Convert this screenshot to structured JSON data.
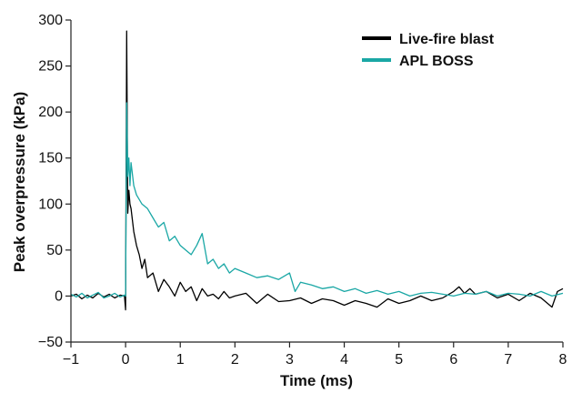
{
  "chart_data": {
    "type": "line",
    "title": "",
    "xlabel": "Time (ms)",
    "ylabel": "Peak overpressure (kPa)",
    "xlim": [
      -1,
      8
    ],
    "ylim": [
      -50,
      300
    ],
    "xticks": [
      -1,
      0,
      1,
      2,
      3,
      4,
      5,
      6,
      7,
      8
    ],
    "yticks": [
      -50,
      0,
      50,
      100,
      150,
      200,
      250,
      300
    ],
    "xtick_labels": [
      "−1",
      "0",
      "1",
      "2",
      "3",
      "4",
      "5",
      "6",
      "7",
      "8"
    ],
    "ytick_labels": [
      "−50",
      "0",
      "50",
      "100",
      "150",
      "200",
      "250",
      "300"
    ],
    "grid": false,
    "legend": "top-right",
    "series": [
      {
        "name": "Live-fire blast",
        "color": "#000000",
        "x": [
          -1.0,
          -0.9,
          -0.8,
          -0.7,
          -0.6,
          -0.5,
          -0.4,
          -0.3,
          -0.2,
          -0.1,
          -0.02,
          0.0,
          0.02,
          0.04,
          0.06,
          0.08,
          0.1,
          0.15,
          0.2,
          0.25,
          0.3,
          0.35,
          0.4,
          0.5,
          0.6,
          0.7,
          0.8,
          0.9,
          1.0,
          1.1,
          1.2,
          1.3,
          1.4,
          1.5,
          1.6,
          1.7,
          1.8,
          1.9,
          2.0,
          2.2,
          2.4,
          2.6,
          2.8,
          3.0,
          3.2,
          3.4,
          3.6,
          3.8,
          4.0,
          4.2,
          4.4,
          4.6,
          4.8,
          5.0,
          5.2,
          5.4,
          5.6,
          5.8,
          6.0,
          6.1,
          6.2,
          6.3,
          6.4,
          6.6,
          6.8,
          7.0,
          7.2,
          7.4,
          7.6,
          7.8,
          7.9,
          8.0
        ],
        "values": [
          0,
          2,
          -3,
          1,
          -2,
          3,
          -1,
          2,
          -2,
          1,
          0,
          -15,
          288,
          90,
          115,
          100,
          95,
          70,
          55,
          45,
          30,
          40,
          20,
          25,
          5,
          18,
          10,
          0,
          15,
          5,
          10,
          -5,
          8,
          0,
          2,
          -3,
          5,
          -2,
          0,
          3,
          -8,
          2,
          -6,
          -5,
          -2,
          -8,
          -3,
          -5,
          -10,
          -5,
          -8,
          -12,
          -3,
          -8,
          -5,
          0,
          -5,
          -2,
          5,
          10,
          3,
          8,
          2,
          5,
          -2,
          2,
          -5,
          3,
          -2,
          -12,
          5,
          8
        ]
      },
      {
        "name": "APL BOSS",
        "color": "#1aa7a5",
        "x": [
          -1.0,
          -0.9,
          -0.8,
          -0.7,
          -0.6,
          -0.5,
          -0.4,
          -0.3,
          -0.2,
          -0.1,
          -0.02,
          0.0,
          0.02,
          0.04,
          0.06,
          0.08,
          0.1,
          0.15,
          0.2,
          0.3,
          0.4,
          0.5,
          0.6,
          0.7,
          0.8,
          0.9,
          1.0,
          1.1,
          1.2,
          1.3,
          1.4,
          1.5,
          1.6,
          1.7,
          1.8,
          1.9,
          2.0,
          2.2,
          2.4,
          2.6,
          2.8,
          3.0,
          3.1,
          3.2,
          3.4,
          3.6,
          3.8,
          4.0,
          4.2,
          4.4,
          4.6,
          4.8,
          5.0,
          5.2,
          5.4,
          5.6,
          5.8,
          6.0,
          6.2,
          6.4,
          6.6,
          6.8,
          7.0,
          7.2,
          7.4,
          7.6,
          7.8,
          8.0
        ],
        "values": [
          2,
          -1,
          3,
          -2,
          1,
          4,
          -2,
          0,
          3,
          -1,
          1,
          0,
          210,
          130,
          150,
          120,
          145,
          120,
          110,
          100,
          95,
          85,
          75,
          80,
          60,
          65,
          55,
          50,
          45,
          55,
          68,
          35,
          40,
          30,
          35,
          25,
          30,
          25,
          20,
          22,
          18,
          25,
          5,
          15,
          12,
          8,
          10,
          5,
          8,
          3,
          6,
          2,
          5,
          0,
          3,
          4,
          2,
          0,
          3,
          2,
          5,
          0,
          3,
          2,
          0,
          5,
          0,
          3
        ]
      }
    ]
  }
}
